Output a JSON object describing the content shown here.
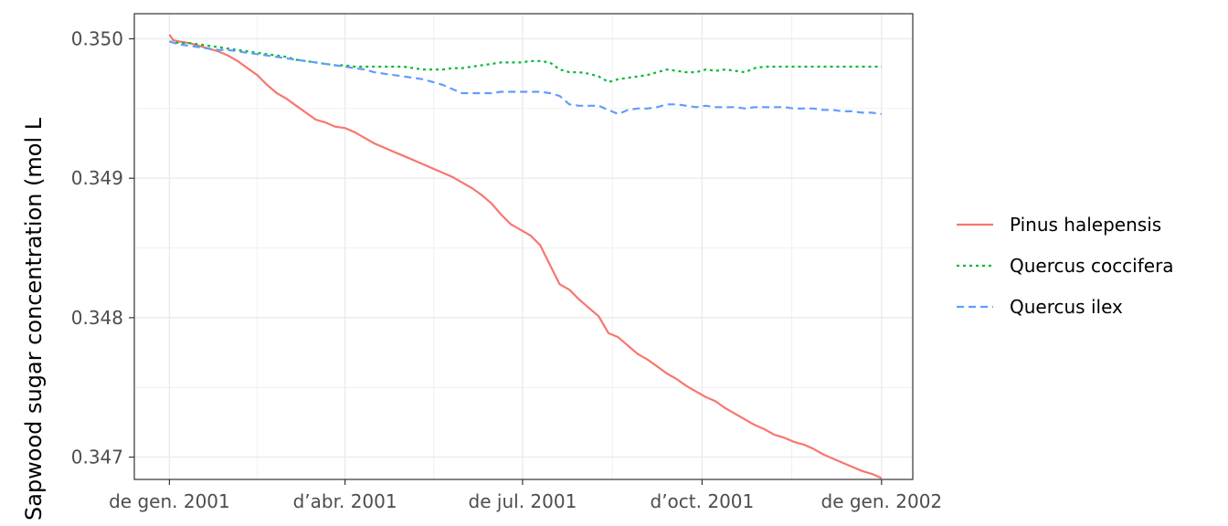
{
  "chart_data": {
    "type": "line",
    "xlabel": "",
    "ylabel": "Sapwood sugar concentration  (mol  L",
    "x_ticks": [
      "de gen. 2001",
      "d’abr. 2001",
      "de jul. 2001",
      "d’oct. 2001",
      "de gen. 2002"
    ],
    "x_tick_days": [
      0,
      90,
      181,
      273,
      365
    ],
    "xlim_days": [
      -18,
      381
    ],
    "y_ticks": [
      "0.347",
      "0.348",
      "0.349",
      "0.350"
    ],
    "ylim": [
      0.34684,
      0.35018
    ],
    "grid": true,
    "legend_position": "right",
    "series": [
      {
        "name": "Pinus halepensis",
        "color": "#F8766D",
        "dash": "solid",
        "points": [
          [
            0,
            0.35003
          ],
          [
            2,
            0.34999
          ],
          [
            5,
            0.34998
          ],
          [
            10,
            0.34997
          ],
          [
            15,
            0.34995
          ],
          [
            20,
            0.34993
          ],
          [
            25,
            0.34991
          ],
          [
            30,
            0.34988
          ],
          [
            35,
            0.34984
          ],
          [
            40,
            0.34979
          ],
          [
            45,
            0.34974
          ],
          [
            50,
            0.34967
          ],
          [
            55,
            0.34961
          ],
          [
            60,
            0.34957
          ],
          [
            65,
            0.34952
          ],
          [
            70,
            0.34947
          ],
          [
            75,
            0.34942
          ],
          [
            80,
            0.3494
          ],
          [
            85,
            0.34937
          ],
          [
            90,
            0.34936
          ],
          [
            95,
            0.34933
          ],
          [
            100,
            0.34929
          ],
          [
            105,
            0.34925
          ],
          [
            110,
            0.34922
          ],
          [
            115,
            0.34919
          ],
          [
            120,
            0.34916
          ],
          [
            125,
            0.34913
          ],
          [
            130,
            0.3491
          ],
          [
            135,
            0.34907
          ],
          [
            140,
            0.34904
          ],
          [
            145,
            0.34901
          ],
          [
            150,
            0.34897
          ],
          [
            155,
            0.34893
          ],
          [
            160,
            0.34888
          ],
          [
            165,
            0.34882
          ],
          [
            170,
            0.34874
          ],
          [
            175,
            0.34867
          ],
          [
            180,
            0.34863
          ],
          [
            185,
            0.34859
          ],
          [
            190,
            0.34852
          ],
          [
            195,
            0.34838
          ],
          [
            200,
            0.34824
          ],
          [
            205,
            0.3482
          ],
          [
            210,
            0.34813
          ],
          [
            215,
            0.34807
          ],
          [
            220,
            0.34801
          ],
          [
            225,
            0.34789
          ],
          [
            230,
            0.34786
          ],
          [
            235,
            0.3478
          ],
          [
            240,
            0.34774
          ],
          [
            245,
            0.3477
          ],
          [
            250,
            0.34765
          ],
          [
            255,
            0.3476
          ],
          [
            260,
            0.34756
          ],
          [
            265,
            0.34751
          ],
          [
            270,
            0.34747
          ],
          [
            275,
            0.34743
          ],
          [
            280,
            0.3474
          ],
          [
            285,
            0.34735
          ],
          [
            290,
            0.34731
          ],
          [
            295,
            0.34727
          ],
          [
            300,
            0.34723
          ],
          [
            305,
            0.3472
          ],
          [
            310,
            0.34716
          ],
          [
            315,
            0.34714
          ],
          [
            320,
            0.34711
          ],
          [
            325,
            0.34709
          ],
          [
            330,
            0.34706
          ],
          [
            335,
            0.34702
          ],
          [
            340,
            0.34699
          ],
          [
            345,
            0.34696
          ],
          [
            350,
            0.34693
          ],
          [
            355,
            0.3469
          ],
          [
            360,
            0.34688
          ],
          [
            365,
            0.34685
          ]
        ]
      },
      {
        "name": "Quercus coccifera",
        "color": "#00BA38",
        "dash": "dotted",
        "points": [
          [
            0,
            0.34998
          ],
          [
            5,
            0.34997
          ],
          [
            10,
            0.34997
          ],
          [
            15,
            0.34996
          ],
          [
            20,
            0.34995
          ],
          [
            25,
            0.34994
          ],
          [
            30,
            0.34993
          ],
          [
            35,
            0.34992
          ],
          [
            40,
            0.34991
          ],
          [
            45,
            0.3499
          ],
          [
            50,
            0.34989
          ],
          [
            55,
            0.34988
          ],
          [
            60,
            0.34987
          ],
          [
            65,
            0.34985
          ],
          [
            70,
            0.34984
          ],
          [
            75,
            0.34983
          ],
          [
            80,
            0.34982
          ],
          [
            85,
            0.34981
          ],
          [
            90,
            0.34981
          ],
          [
            95,
            0.3498
          ],
          [
            100,
            0.3498
          ],
          [
            105,
            0.3498
          ],
          [
            110,
            0.3498
          ],
          [
            115,
            0.3498
          ],
          [
            120,
            0.3498
          ],
          [
            125,
            0.34979
          ],
          [
            130,
            0.34978
          ],
          [
            135,
            0.34978
          ],
          [
            140,
            0.34978
          ],
          [
            145,
            0.34979
          ],
          [
            150,
            0.34979
          ],
          [
            155,
            0.3498
          ],
          [
            160,
            0.34981
          ],
          [
            165,
            0.34982
          ],
          [
            170,
            0.34983
          ],
          [
            175,
            0.34983
          ],
          [
            180,
            0.34983
          ],
          [
            185,
            0.34984
          ],
          [
            190,
            0.34984
          ],
          [
            195,
            0.34983
          ],
          [
            200,
            0.34978
          ],
          [
            205,
            0.34976
          ],
          [
            210,
            0.34976
          ],
          [
            215,
            0.34975
          ],
          [
            220,
            0.34973
          ],
          [
            225,
            0.34969
          ],
          [
            230,
            0.34971
          ],
          [
            235,
            0.34972
          ],
          [
            240,
            0.34973
          ],
          [
            245,
            0.34974
          ],
          [
            250,
            0.34976
          ],
          [
            255,
            0.34978
          ],
          [
            260,
            0.34977
          ],
          [
            265,
            0.34976
          ],
          [
            270,
            0.34976
          ],
          [
            275,
            0.34978
          ],
          [
            280,
            0.34977
          ],
          [
            285,
            0.34978
          ],
          [
            290,
            0.34977
          ],
          [
            295,
            0.34976
          ],
          [
            300,
            0.34979
          ],
          [
            305,
            0.3498
          ],
          [
            310,
            0.3498
          ],
          [
            315,
            0.3498
          ],
          [
            320,
            0.3498
          ],
          [
            325,
            0.3498
          ],
          [
            330,
            0.3498
          ],
          [
            335,
            0.3498
          ],
          [
            340,
            0.3498
          ],
          [
            345,
            0.3498
          ],
          [
            350,
            0.3498
          ],
          [
            355,
            0.3498
          ],
          [
            360,
            0.3498
          ],
          [
            365,
            0.3498
          ]
        ]
      },
      {
        "name": "Quercus ilex",
        "color": "#619CFF",
        "dash": "dashed",
        "points": [
          [
            0,
            0.34998
          ],
          [
            5,
            0.34996
          ],
          [
            10,
            0.34995
          ],
          [
            15,
            0.34994
          ],
          [
            20,
            0.34993
          ],
          [
            25,
            0.34992
          ],
          [
            30,
            0.34992
          ],
          [
            35,
            0.34991
          ],
          [
            40,
            0.3499
          ],
          [
            45,
            0.34989
          ],
          [
            50,
            0.34988
          ],
          [
            55,
            0.34987
          ],
          [
            60,
            0.34986
          ],
          [
            65,
            0.34985
          ],
          [
            70,
            0.34984
          ],
          [
            75,
            0.34983
          ],
          [
            80,
            0.34982
          ],
          [
            85,
            0.34981
          ],
          [
            90,
            0.3498
          ],
          [
            95,
            0.34979
          ],
          [
            100,
            0.34978
          ],
          [
            105,
            0.34976
          ],
          [
            110,
            0.34975
          ],
          [
            115,
            0.34974
          ],
          [
            120,
            0.34973
          ],
          [
            125,
            0.34972
          ],
          [
            130,
            0.34971
          ],
          [
            135,
            0.34969
          ],
          [
            140,
            0.34967
          ],
          [
            145,
            0.34964
          ],
          [
            150,
            0.34961
          ],
          [
            155,
            0.34961
          ],
          [
            160,
            0.34961
          ],
          [
            165,
            0.34961
          ],
          [
            170,
            0.34962
          ],
          [
            175,
            0.34962
          ],
          [
            180,
            0.34962
          ],
          [
            185,
            0.34962
          ],
          [
            190,
            0.34962
          ],
          [
            195,
            0.34961
          ],
          [
            200,
            0.34959
          ],
          [
            205,
            0.34953
          ],
          [
            210,
            0.34952
          ],
          [
            215,
            0.34952
          ],
          [
            220,
            0.34952
          ],
          [
            225,
            0.34949
          ],
          [
            230,
            0.34946
          ],
          [
            235,
            0.34949
          ],
          [
            240,
            0.3495
          ],
          [
            245,
            0.3495
          ],
          [
            250,
            0.34951
          ],
          [
            255,
            0.34953
          ],
          [
            260,
            0.34953
          ],
          [
            265,
            0.34952
          ],
          [
            270,
            0.34951
          ],
          [
            275,
            0.34952
          ],
          [
            280,
            0.34951
          ],
          [
            285,
            0.34951
          ],
          [
            290,
            0.34951
          ],
          [
            295,
            0.3495
          ],
          [
            300,
            0.34951
          ],
          [
            305,
            0.34951
          ],
          [
            310,
            0.34951
          ],
          [
            315,
            0.34951
          ],
          [
            320,
            0.3495
          ],
          [
            325,
            0.3495
          ],
          [
            330,
            0.3495
          ],
          [
            335,
            0.34949
          ],
          [
            340,
            0.34949
          ],
          [
            345,
            0.34948
          ],
          [
            350,
            0.34948
          ],
          [
            355,
            0.34947
          ],
          [
            360,
            0.34947
          ],
          [
            365,
            0.34946
          ]
        ]
      }
    ]
  }
}
